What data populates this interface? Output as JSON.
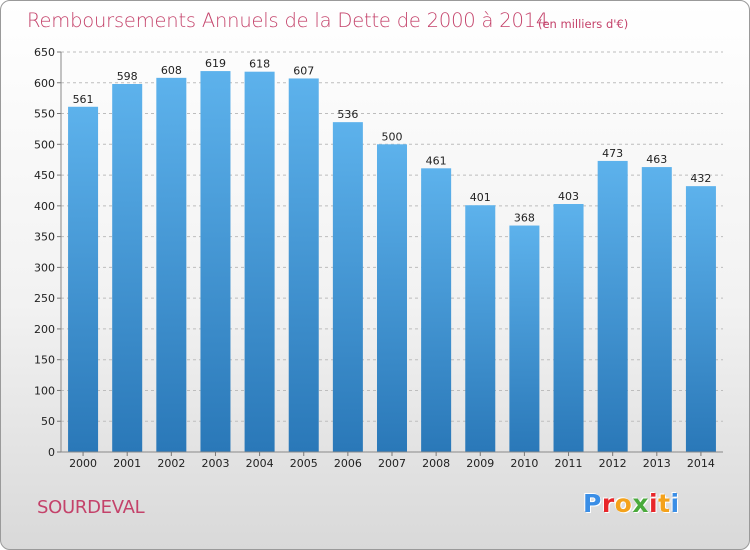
{
  "title": "Remboursements Annuels de la Dette de 2000 à 2014",
  "subtitle": "(en milliers d'€)",
  "commune": "SOURDEVAL",
  "logo": {
    "letters": [
      "P",
      "r",
      "o",
      "x",
      "i",
      "t",
      "i"
    ],
    "colors": [
      "#3a8ee6",
      "#e8262a",
      "#f4a21b",
      "#4aaa3c",
      "#e8262a",
      "#f4a21b",
      "#3a8ee6"
    ]
  },
  "colors": {
    "bar": "#4fa6e4",
    "bar_dark": "#1f6fad",
    "title": "#c4426a",
    "grid": "#bdbdbd"
  },
  "chart_data": {
    "type": "bar",
    "categories": [
      "2000",
      "2001",
      "2002",
      "2003",
      "2004",
      "2005",
      "2006",
      "2007",
      "2008",
      "2009",
      "2010",
      "2011",
      "2012",
      "2013",
      "2014"
    ],
    "values": [
      561,
      598,
      608,
      619,
      618,
      607,
      536,
      500,
      461,
      401,
      368,
      403,
      473,
      463,
      432
    ],
    "yticks": [
      0,
      50,
      100,
      150,
      200,
      250,
      300,
      350,
      400,
      450,
      500,
      550,
      600,
      650
    ],
    "ylim": [
      0,
      650
    ],
    "grid": true,
    "xlabel": "",
    "ylabel": ""
  }
}
